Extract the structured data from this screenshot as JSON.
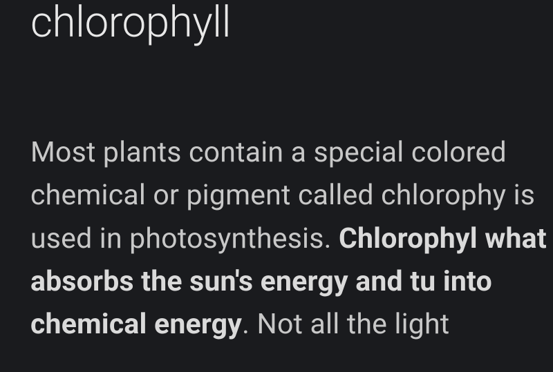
{
  "article": {
    "heading": "chlorophyll",
    "body_part1": "Most plants contain a special colored chemical or pigment called chlorophy",
    "body_part2": " is used in photosynthesis. ",
    "body_bold": "Chlorophyl what absorbs the sun's energy and tu into chemical energy",
    "body_part3": ". Not all the light"
  },
  "colors": {
    "background": "#1a1b1e",
    "heading_text": "#e8e8e8",
    "body_text": "#c8c8c8",
    "bold_text": "#dadada"
  },
  "typography": {
    "heading_fontsize": 62,
    "heading_weight": 300,
    "body_fontsize": 41,
    "body_weight": 400,
    "bold_weight": 700,
    "line_height": 1.52
  }
}
